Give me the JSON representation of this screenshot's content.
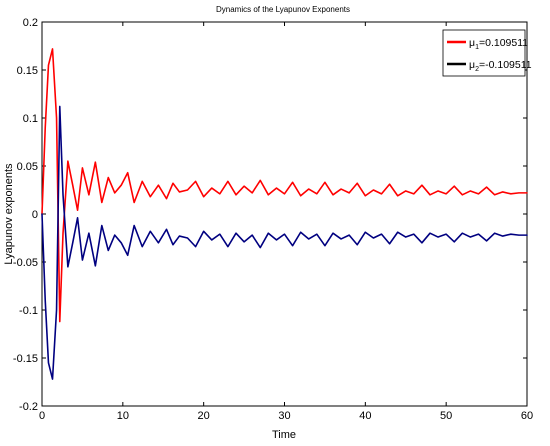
{
  "chart_data": {
    "type": "line",
    "title": "Dynamics of the Lyapunov Exponents",
    "xlabel": "Time",
    "ylabel": "Lyapunov exponents",
    "xlim": [
      0,
      60
    ],
    "ylim": [
      -0.2,
      0.2
    ],
    "xticks": [
      0,
      10,
      20,
      30,
      40,
      50,
      60
    ],
    "yticks": [
      -0.2,
      -0.15,
      -0.1,
      -0.05,
      0,
      0.05,
      0.1,
      0.15,
      0.2
    ],
    "xtick_labels": [
      "0",
      "10",
      "20",
      "30",
      "40",
      "50",
      "60"
    ],
    "ytick_labels": [
      "-0.2",
      "-0.15",
      "-0.1",
      "-0.05",
      "0",
      "0.05",
      "0.1",
      "0.15",
      "0.2"
    ],
    "grid": false,
    "legend_position": "top-right",
    "series": [
      {
        "name": "μ1=0.109511",
        "color": "#ff0000",
        "x": [
          0,
          0.4,
          0.8,
          1.3,
          1.8,
          2.2,
          2.6,
          3.2,
          3.8,
          4.4,
          5.0,
          5.8,
          6.6,
          7.4,
          8.2,
          9.0,
          9.8,
          10.6,
          11.4,
          12.4,
          13.4,
          14.4,
          15.4,
          16.2,
          17.0,
          18.0,
          19.0,
          20.0,
          21.0,
          22.0,
          23.0,
          24.0,
          25.0,
          26.0,
          27.0,
          28.0,
          29.0,
          30.0,
          31.0,
          32.0,
          33.0,
          34.0,
          35.0,
          36.0,
          37.0,
          38.0,
          39.0,
          40.0,
          41.0,
          42.0,
          43.0,
          44.0,
          45.0,
          46.0,
          47.0,
          48.0,
          49.0,
          50.0,
          51.0,
          52.0,
          53.0,
          54.0,
          55.0,
          56.0,
          57.0,
          58.0,
          59.0,
          60.0
        ],
        "y": [
          0,
          0.09,
          0.155,
          0.172,
          0.1,
          -0.112,
          -0.02,
          0.055,
          0.03,
          0.004,
          0.048,
          0.02,
          0.054,
          0.012,
          0.038,
          0.022,
          0.03,
          0.043,
          0.012,
          0.034,
          0.018,
          0.03,
          0.016,
          0.032,
          0.023,
          0.025,
          0.034,
          0.018,
          0.027,
          0.021,
          0.034,
          0.02,
          0.029,
          0.022,
          0.035,
          0.02,
          0.027,
          0.021,
          0.033,
          0.019,
          0.026,
          0.021,
          0.033,
          0.02,
          0.026,
          0.022,
          0.032,
          0.019,
          0.025,
          0.021,
          0.031,
          0.019,
          0.024,
          0.021,
          0.03,
          0.02,
          0.024,
          0.021,
          0.029,
          0.02,
          0.024,
          0.021,
          0.028,
          0.02,
          0.023,
          0.021,
          0.022,
          0.022
        ]
      },
      {
        "name": "μ2=-0.109511",
        "color": "#000080",
        "x": [
          0,
          0.4,
          0.8,
          1.3,
          1.8,
          2.2,
          2.6,
          3.2,
          3.8,
          4.4,
          5.0,
          5.8,
          6.6,
          7.4,
          8.2,
          9.0,
          9.8,
          10.6,
          11.4,
          12.4,
          13.4,
          14.4,
          15.4,
          16.2,
          17.0,
          18.0,
          19.0,
          20.0,
          21.0,
          22.0,
          23.0,
          24.0,
          25.0,
          26.0,
          27.0,
          28.0,
          29.0,
          30.0,
          31.0,
          32.0,
          33.0,
          34.0,
          35.0,
          36.0,
          37.0,
          38.0,
          39.0,
          40.0,
          41.0,
          42.0,
          43.0,
          44.0,
          45.0,
          46.0,
          47.0,
          48.0,
          49.0,
          50.0,
          51.0,
          52.0,
          53.0,
          54.0,
          55.0,
          56.0,
          57.0,
          58.0,
          59.0,
          60.0
        ],
        "y": [
          0,
          -0.09,
          -0.155,
          -0.172,
          -0.1,
          0.112,
          0.02,
          -0.055,
          -0.03,
          -0.004,
          -0.048,
          -0.02,
          -0.054,
          -0.012,
          -0.038,
          -0.022,
          -0.03,
          -0.043,
          -0.012,
          -0.034,
          -0.018,
          -0.03,
          -0.016,
          -0.032,
          -0.023,
          -0.025,
          -0.034,
          -0.018,
          -0.027,
          -0.021,
          -0.034,
          -0.02,
          -0.029,
          -0.022,
          -0.035,
          -0.02,
          -0.027,
          -0.021,
          -0.033,
          -0.019,
          -0.026,
          -0.021,
          -0.033,
          -0.02,
          -0.026,
          -0.022,
          -0.032,
          -0.019,
          -0.025,
          -0.021,
          -0.031,
          -0.019,
          -0.024,
          -0.021,
          -0.03,
          -0.02,
          -0.024,
          -0.021,
          -0.029,
          -0.02,
          -0.024,
          -0.021,
          -0.028,
          -0.02,
          -0.023,
          -0.021,
          -0.022,
          -0.022
        ]
      }
    ],
    "legend_entries": [
      {
        "sym": "μ",
        "sub": "1",
        "value": "=0.109511"
      },
      {
        "sym": "μ",
        "sub": "2",
        "value": "=-0.109511"
      }
    ]
  }
}
